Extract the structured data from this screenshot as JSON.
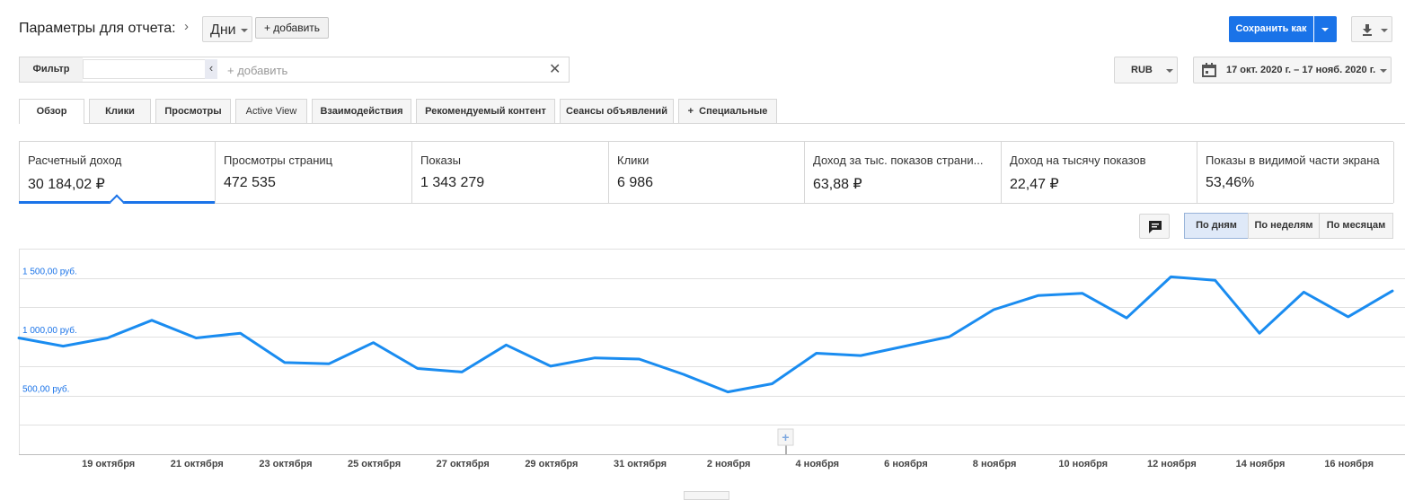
{
  "header": {
    "title": "Параметры для отчета:",
    "dimension": "Дни",
    "add_label": "+ добавить",
    "save_label": "Сохранить как"
  },
  "filter": {
    "label": "Фильтр",
    "value": "",
    "add_placeholder": "+ добавить"
  },
  "currency": "RUB",
  "date_range": "17 окт. 2020 г. – 17 нояб. 2020 г.",
  "tabs": [
    {
      "label": "Обзор"
    },
    {
      "label": "Клики"
    },
    {
      "label": "Просмотры"
    },
    {
      "label": "Active View"
    },
    {
      "label": "Взаимодействия"
    },
    {
      "label": "Рекомендуемый контент"
    },
    {
      "label": "Сеансы объявлений"
    },
    {
      "label": "Специальные"
    }
  ],
  "metrics": [
    {
      "label": "Расчетный доход",
      "value": "30 184,02 ₽"
    },
    {
      "label": "Просмотры страниц",
      "value": "472 535"
    },
    {
      "label": "Показы",
      "value": "1 343 279"
    },
    {
      "label": "Клики",
      "value": "6 986"
    },
    {
      "label": "Доход за тыс. показов страни...",
      "value": "63,88 ₽"
    },
    {
      "label": "Доход на тысячу показов",
      "value": "22,47 ₽"
    },
    {
      "label": "Показы в видимой части экрана",
      "value": "53,46%"
    }
  ],
  "granularity": {
    "day": "По дням",
    "week": "По неделям",
    "month": "По месяцам"
  },
  "colors": {
    "accent": "#1a73e8",
    "line": "#1a8cf0"
  },
  "chart_data": {
    "type": "line",
    "y_ticks": [
      "1 500,00 руб.",
      "1 000,00 руб.",
      "500,00 руб."
    ],
    "y_tick_values": [
      1500,
      1000,
      500
    ],
    "ylim": [
      0,
      1750
    ],
    "x_ticks": [
      "19 октября",
      "21 октября",
      "23 октября",
      "25 октября",
      "27 октября",
      "29 октября",
      "31 октября",
      "2 ноября",
      "4 ноября",
      "6 ноября",
      "8 ноября",
      "10 ноября",
      "12 ноября",
      "14 ноября",
      "16 ноября"
    ],
    "x": [
      "17 октября",
      "18 октября",
      "19 октября",
      "20 октября",
      "21 октября",
      "22 октября",
      "23 октября",
      "24 октября",
      "25 октября",
      "26 октября",
      "27 октября",
      "28 октября",
      "29 октября",
      "30 октября",
      "31 октября",
      "1 ноября",
      "2 ноября",
      "3 ноября",
      "4 ноября",
      "5 ноября",
      "6 ноября",
      "7 ноября",
      "8 ноября",
      "9 ноября",
      "10 ноября",
      "11 ноября",
      "12 ноября",
      "13 ноября",
      "14 ноября",
      "15 ноября",
      "16 ноября",
      "17 ноября"
    ],
    "values": [
      990,
      920,
      990,
      1140,
      990,
      1030,
      780,
      770,
      950,
      730,
      700,
      930,
      750,
      820,
      810,
      680,
      530,
      600,
      860,
      840,
      920,
      1000,
      1230,
      1350,
      1370,
      1160,
      1510,
      1480,
      1030,
      1380,
      1170,
      1390
    ],
    "series": [
      {
        "values": [
          990,
          920,
          990,
          1140,
          990,
          1030,
          780,
          770,
          950,
          730,
          700,
          930,
          750,
          820,
          810,
          680,
          530,
          600,
          860,
          840,
          920,
          1000,
          1230,
          1350,
          1370,
          1160,
          1510,
          1480,
          1030,
          1380,
          1170,
          1390
        ]
      }
    ],
    "grid": true
  }
}
